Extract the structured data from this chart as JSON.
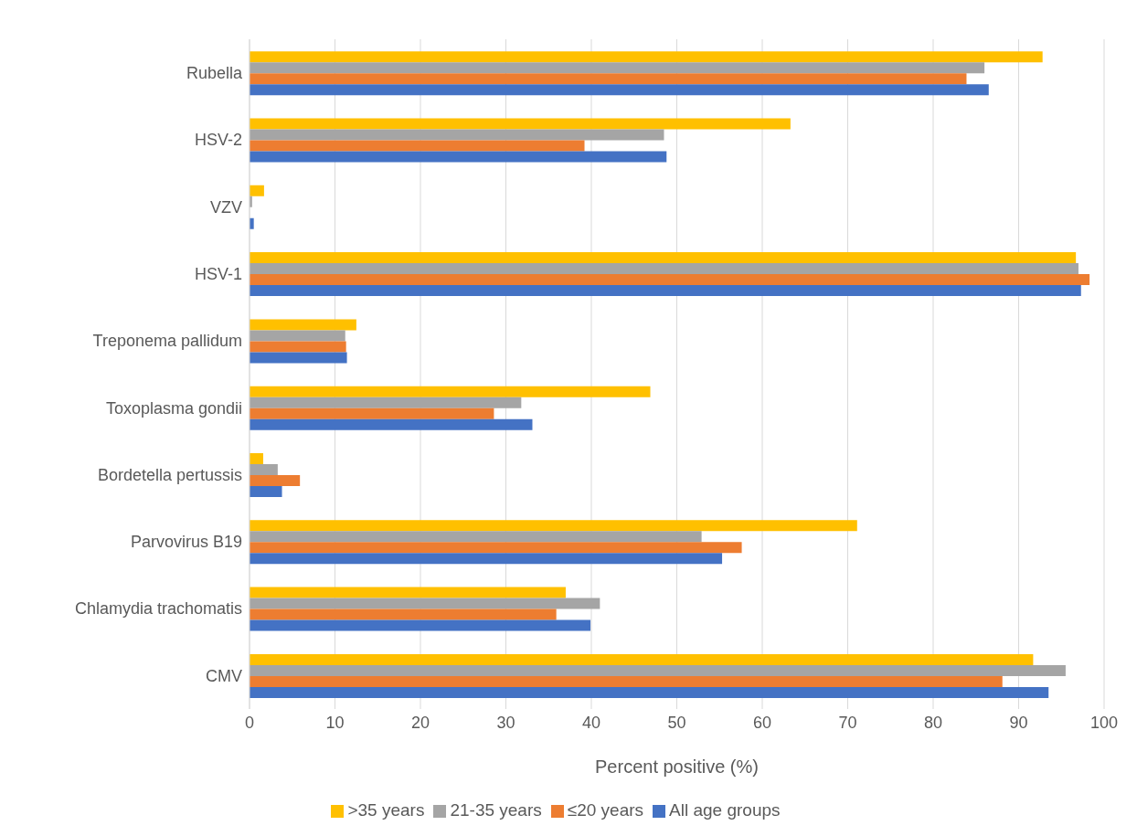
{
  "chart_data": {
    "type": "bar",
    "orientation": "horizontal",
    "xlabel": "Percent positive (%)",
    "categories": [
      "Rubella",
      "HSV-2",
      "VZV",
      "HSV-1",
      "Treponema pallidum",
      "Toxoplasma gondii",
      "Bordetella pertussis",
      "Parvovirus B19",
      "Chlamydia trachomatis",
      "CMV"
    ],
    "series": [
      {
        "name": ">35 years",
        "color": "#ffc000",
        "values": [
          92.8,
          63.3,
          1.7,
          96.7,
          12.5,
          46.9,
          1.6,
          71.1,
          37,
          91.7
        ]
      },
      {
        "name": "21-35 years",
        "color": "#a5a5a5",
        "values": [
          86,
          48.5,
          0.3,
          97,
          11.2,
          31.8,
          3.3,
          52.9,
          41,
          95.5
        ]
      },
      {
        "name": "≤20 years",
        "color": "#ed7d31",
        "values": [
          83.9,
          39.2,
          0,
          98.3,
          11.3,
          28.6,
          5.9,
          57.6,
          35.9,
          88.1
        ]
      },
      {
        "name": "All age groups",
        "color": "#4472c4",
        "values": [
          86.5,
          48.8,
          0.5,
          97.3,
          11.4,
          33.1,
          3.8,
          55.3,
          39.9,
          93.5
        ]
      }
    ],
    "xlim": [
      0,
      100
    ],
    "xticks": [
      0,
      10,
      20,
      30,
      40,
      50,
      60,
      70,
      80,
      90,
      100
    ],
    "grid": "x",
    "legend": "bottom"
  }
}
